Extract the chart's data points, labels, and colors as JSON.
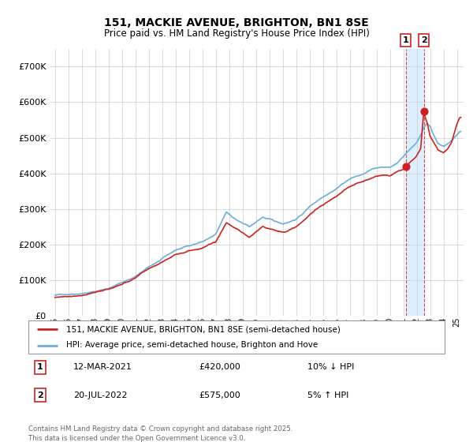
{
  "title": "151, MACKIE AVENUE, BRIGHTON, BN1 8SE",
  "subtitle": "Price paid vs. HM Land Registry's House Price Index (HPI)",
  "hpi_label": "HPI: Average price, semi-detached house, Brighton and Hove",
  "price_label": "151, MACKIE AVENUE, BRIGHTON, BN1 8SE (semi-detached house)",
  "transaction1_date": "12-MAR-2021",
  "transaction1_price": 420000,
  "transaction1_hpi_diff": "10% ↓ HPI",
  "transaction2_date": "20-JUL-2022",
  "transaction2_price": 575000,
  "transaction2_hpi_diff": "5% ↑ HPI",
  "footnote": "Contains HM Land Registry data © Crown copyright and database right 2025.\nThis data is licensed under the Open Government Licence v3.0.",
  "hpi_color": "#6baed6",
  "price_color": "#cc2222",
  "highlight_color": "#ddeeff",
  "background_color": "#ffffff",
  "ylim": [
    0,
    750000
  ],
  "yticks": [
    0,
    100000,
    200000,
    300000,
    400000,
    500000,
    600000,
    700000
  ],
  "transaction1_year": 2021.19,
  "transaction2_year": 2022.54,
  "xmin": 1994.6,
  "xmax": 2025.5
}
